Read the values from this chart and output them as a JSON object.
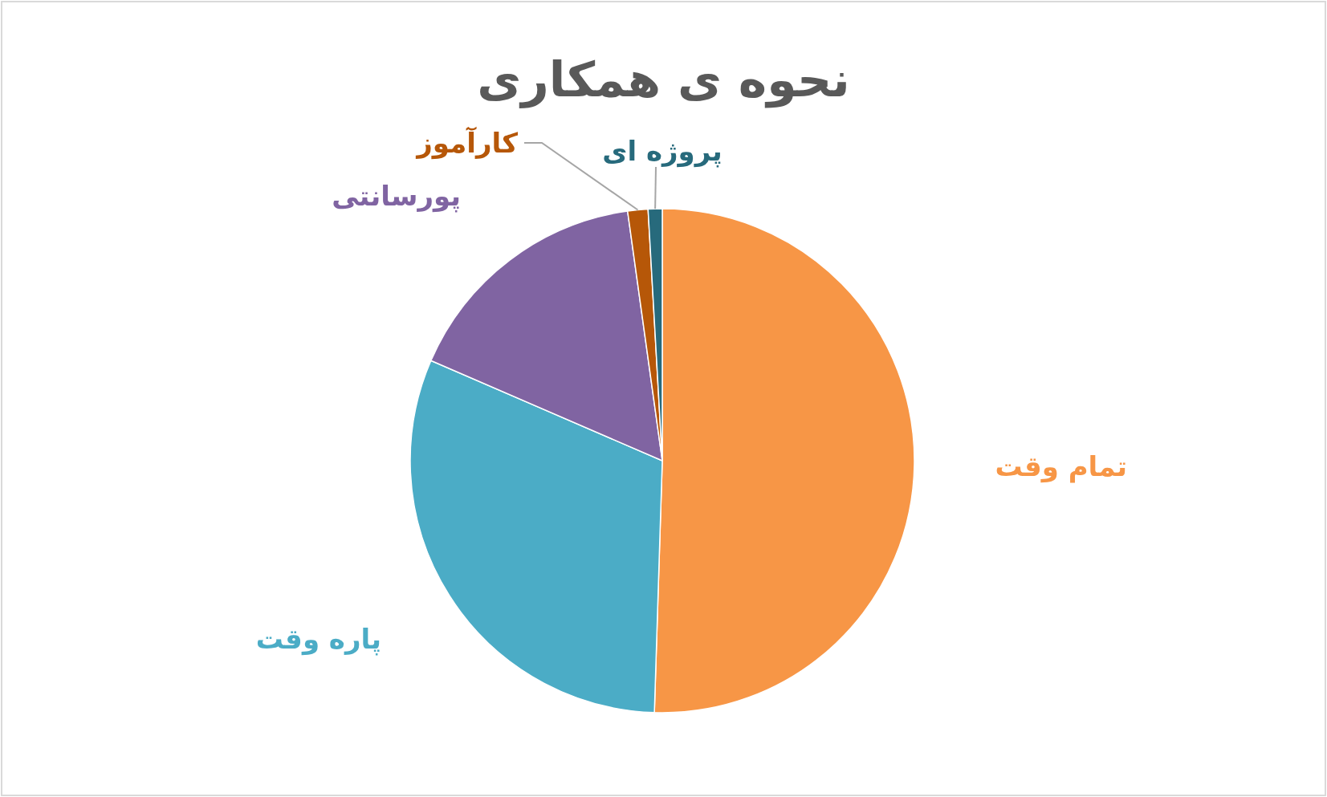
{
  "chart_data": {
    "type": "pie",
    "title": "نحوه ی همکاری",
    "categories": [
      "تمام وقت",
      "پاره وقت",
      "پورسانتی",
      "کارآموز",
      "پروژه ای"
    ],
    "values": [
      50.5,
      31.0,
      16.3,
      1.3,
      0.9
    ],
    "colors": [
      "#f79646",
      "#4bacc6",
      "#8064a2",
      "#b65708",
      "#276a7c"
    ]
  }
}
